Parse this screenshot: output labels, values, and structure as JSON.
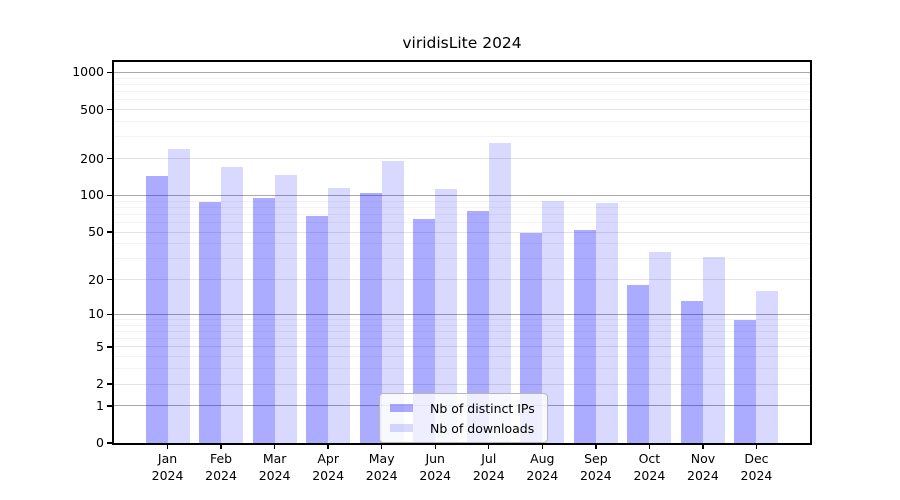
{
  "title": "viridisLite 2024",
  "legend": {
    "items": [
      {
        "label": "Nb of distinct IPs",
        "color": "rgba(0,0,255,0.33)"
      },
      {
        "label": "Nb of downloads",
        "color": "rgba(0,0,255,0.15)"
      }
    ]
  },
  "colors": {
    "bar_distinct_ips": "rgba(0,0,255,0.33)",
    "bar_downloads": "rgba(0,0,255,0.15)",
    "grid_decade": "#a9a9a9",
    "grid_tick": "#e4e4e4",
    "grid_minor": "#f3f3f3",
    "axis": "#000000",
    "background": "#ffffff"
  },
  "chart_data": {
    "type": "bar",
    "title": "viridisLite 2024",
    "categories": [
      "Jan",
      "Feb",
      "Mar",
      "Apr",
      "May",
      "Jun",
      "Jul",
      "Aug",
      "Sep",
      "Oct",
      "Nov",
      "Dec"
    ],
    "year_label": "2024",
    "series": [
      {
        "name": "Nb of distinct IPs",
        "color": "rgba(0,0,255,0.33)",
        "values": [
          145,
          88,
          96,
          68,
          104,
          64,
          75,
          49,
          52,
          18,
          13,
          9
        ]
      },
      {
        "name": "Nb of downloads",
        "color": "rgba(0,0,255,0.15)",
        "values": [
          240,
          172,
          147,
          115,
          191,
          112,
          268,
          90,
          87,
          34,
          31,
          16
        ]
      }
    ],
    "xlabel": "",
    "ylabel": "",
    "yscale": "log1p",
    "yticks": [
      0,
      1,
      2,
      5,
      10,
      20,
      50,
      100,
      200,
      500,
      1000
    ],
    "ylim": [
      0,
      1230
    ],
    "grid": true,
    "legend_position": "lower-center"
  }
}
